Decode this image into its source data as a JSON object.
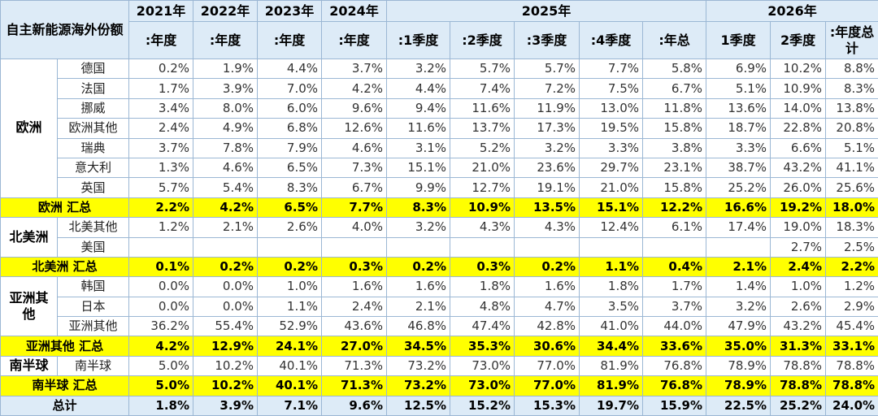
{
  "header": {
    "title": "自主新能源海外份额",
    "years": [
      "2021年",
      "2022年",
      "2023年",
      "2024年",
      "2025年",
      "2026年"
    ],
    "periods": [
      ":年度",
      ":年度",
      ":年度",
      ":年度",
      ":1季度",
      ":2季度",
      ":3季度",
      ":4季度",
      ":年总",
      "1季度",
      "2季度",
      ":年度总计"
    ]
  },
  "groups": [
    {
      "name": "欧洲",
      "rows": [
        {
          "name": "德国",
          "values": [
            "0.2%",
            "1.9%",
            "4.4%",
            "3.7%",
            "3.2%",
            "5.7%",
            "5.7%",
            "7.7%",
            "5.8%",
            "6.9%",
            "10.2%",
            "8.8%"
          ]
        },
        {
          "name": "法国",
          "values": [
            "1.7%",
            "3.9%",
            "7.0%",
            "4.2%",
            "4.4%",
            "7.4%",
            "7.2%",
            "7.5%",
            "6.7%",
            "5.1%",
            "10.9%",
            "8.3%"
          ]
        },
        {
          "name": "挪威",
          "values": [
            "3.4%",
            "8.0%",
            "6.0%",
            "9.6%",
            "9.4%",
            "11.6%",
            "11.9%",
            "13.0%",
            "11.8%",
            "13.6%",
            "14.0%",
            "13.8%"
          ]
        },
        {
          "name": "欧洲其他",
          "values": [
            "2.4%",
            "4.9%",
            "6.8%",
            "12.6%",
            "11.6%",
            "13.7%",
            "17.3%",
            "19.5%",
            "15.8%",
            "18.7%",
            "22.8%",
            "20.8%"
          ]
        },
        {
          "name": "瑞典",
          "values": [
            "3.7%",
            "7.8%",
            "7.9%",
            "4.6%",
            "3.1%",
            "5.2%",
            "3.2%",
            "3.3%",
            "3.8%",
            "3.3%",
            "6.6%",
            "5.1%"
          ]
        },
        {
          "name": "意大利",
          "values": [
            "1.3%",
            "4.6%",
            "6.5%",
            "7.3%",
            "15.1%",
            "21.0%",
            "23.6%",
            "29.7%",
            "23.1%",
            "38.7%",
            "43.2%",
            "41.1%"
          ]
        },
        {
          "name": "英国",
          "values": [
            "5.7%",
            "5.4%",
            "8.3%",
            "6.7%",
            "9.9%",
            "12.7%",
            "19.1%",
            "21.0%",
            "15.8%",
            "25.2%",
            "26.0%",
            "25.6%"
          ]
        }
      ],
      "summary": {
        "name": "欧洲 汇总",
        "values": [
          "2.2%",
          "4.2%",
          "6.5%",
          "7.7%",
          "8.3%",
          "10.9%",
          "13.5%",
          "15.1%",
          "12.2%",
          "16.6%",
          "19.2%",
          "18.0%"
        ]
      }
    },
    {
      "name": "北美洲",
      "rows": [
        {
          "name": "北美其他",
          "values": [
            "1.2%",
            "2.1%",
            "2.6%",
            "4.0%",
            "3.2%",
            "4.3%",
            "4.3%",
            "12.4%",
            "6.1%",
            "17.4%",
            "19.0%",
            "18.3%"
          ]
        },
        {
          "name": "美国",
          "values": [
            null,
            null,
            null,
            null,
            null,
            null,
            null,
            null,
            null,
            null,
            "2.7%",
            "2.5%"
          ]
        }
      ],
      "summary": {
        "name": "北美洲 汇总",
        "values": [
          "0.1%",
          "0.2%",
          "0.2%",
          "0.3%",
          "0.2%",
          "0.3%",
          "0.2%",
          "1.1%",
          "0.4%",
          "2.1%",
          "2.4%",
          "2.2%"
        ]
      }
    },
    {
      "name": "亚洲其他",
      "rows": [
        {
          "name": "韩国",
          "values": [
            "0.0%",
            "0.0%",
            "1.0%",
            "1.6%",
            "1.6%",
            "1.8%",
            "1.6%",
            "1.8%",
            "1.7%",
            "1.4%",
            "1.0%",
            "1.2%"
          ]
        },
        {
          "name": "日本",
          "values": [
            "0.0%",
            "0.0%",
            "1.1%",
            "2.4%",
            "2.1%",
            "4.8%",
            "4.7%",
            "3.5%",
            "3.7%",
            "3.2%",
            "2.6%",
            "2.9%"
          ]
        },
        {
          "name": "亚洲其他",
          "values": [
            "36.2%",
            "55.4%",
            "52.9%",
            "43.6%",
            "46.8%",
            "47.4%",
            "42.8%",
            "41.0%",
            "44.0%",
            "47.9%",
            "43.2%",
            "45.4%"
          ]
        }
      ],
      "summary": {
        "name": "亚洲其他 汇总",
        "values": [
          "4.2%",
          "12.9%",
          "24.1%",
          "27.0%",
          "34.5%",
          "35.3%",
          "30.6%",
          "34.4%",
          "33.6%",
          "35.0%",
          "31.3%",
          "33.1%"
        ]
      }
    },
    {
      "name": "南半球",
      "rows": [
        {
          "name": "南半球",
          "values": [
            "5.0%",
            "10.2%",
            "40.1%",
            "71.3%",
            "73.2%",
            "73.0%",
            "77.0%",
            "81.9%",
            "76.8%",
            "78.9%",
            "78.8%",
            "78.8%"
          ]
        }
      ],
      "summary": {
        "name": "南半球 汇总",
        "values": [
          "5.0%",
          "10.2%",
          "40.1%",
          "71.3%",
          "73.2%",
          "73.0%",
          "77.0%",
          "81.9%",
          "76.8%",
          "78.9%",
          "78.8%",
          "78.8%"
        ]
      }
    }
  ],
  "total": {
    "name": "总计",
    "values": [
      "1.8%",
      "3.9%",
      "7.1%",
      "9.6%",
      "12.5%",
      "15.2%",
      "15.3%",
      "19.7%",
      "15.9%",
      "22.5%",
      "25.2%",
      "24.0%"
    ]
  }
}
